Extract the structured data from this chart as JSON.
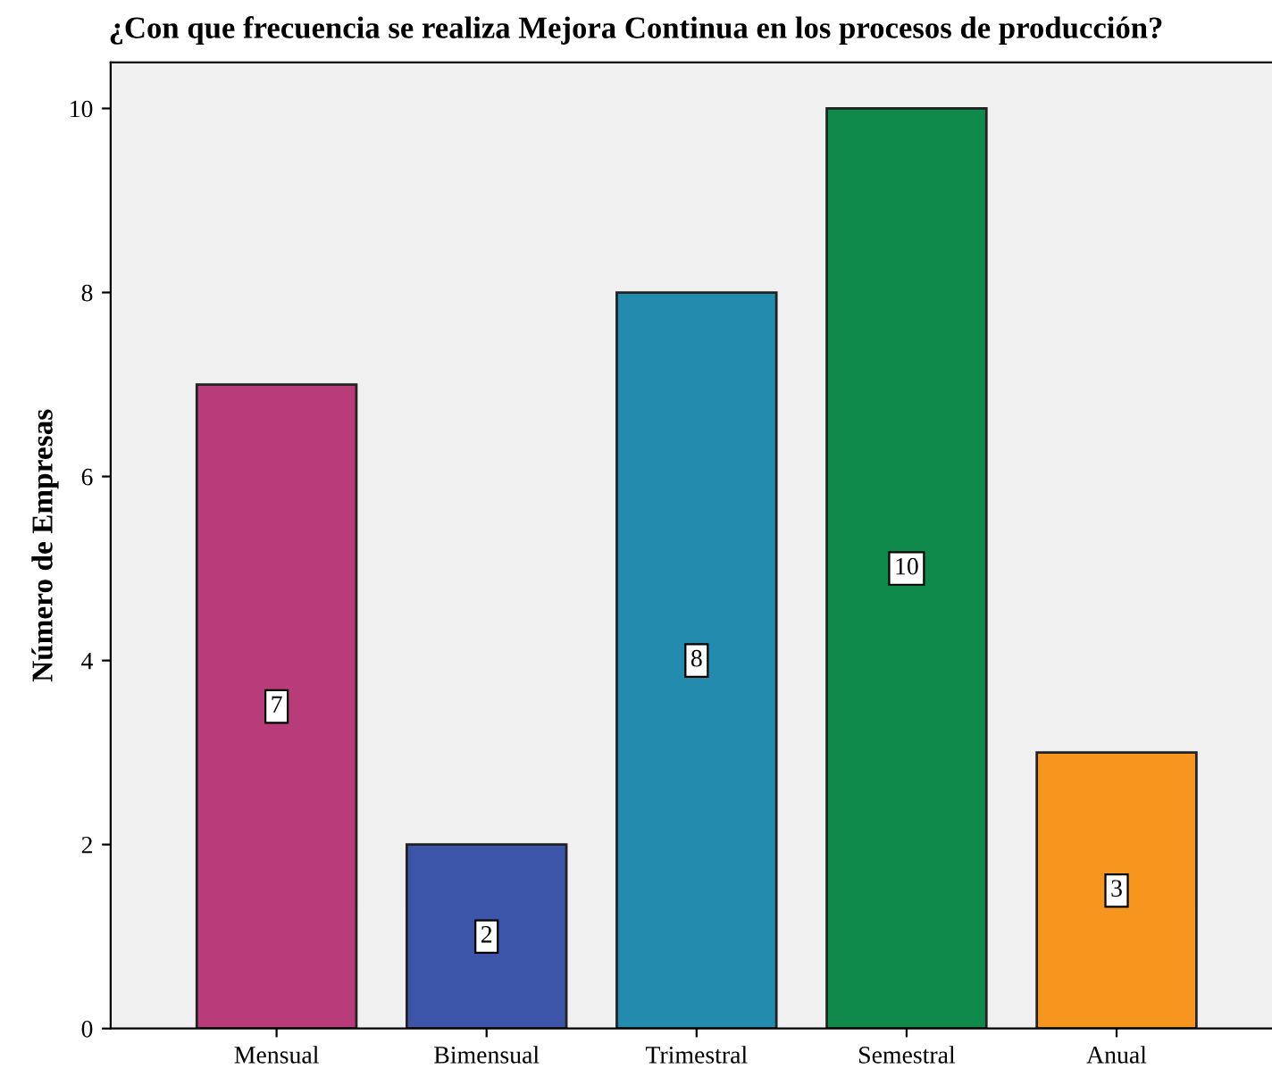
{
  "chart_data": {
    "type": "bar",
    "title": "¿Con que frecuencia se realiza Mejora Continua en los procesos de producción?",
    "ylabel": "Número de Empresas",
    "categories": [
      "Mensual",
      "Bimensual",
      "Trimestral",
      "Semestral",
      "Anual"
    ],
    "values": [
      7,
      2,
      8,
      10,
      3
    ],
    "colors": [
      "#b83c7a",
      "#3d55a8",
      "#238bad",
      "#0f8a4a",
      "#f7961e"
    ],
    "ylim": [
      0,
      10.5
    ],
    "yticks": [
      0,
      2,
      4,
      6,
      8,
      10
    ],
    "grid": false,
    "data_labels": true
  }
}
